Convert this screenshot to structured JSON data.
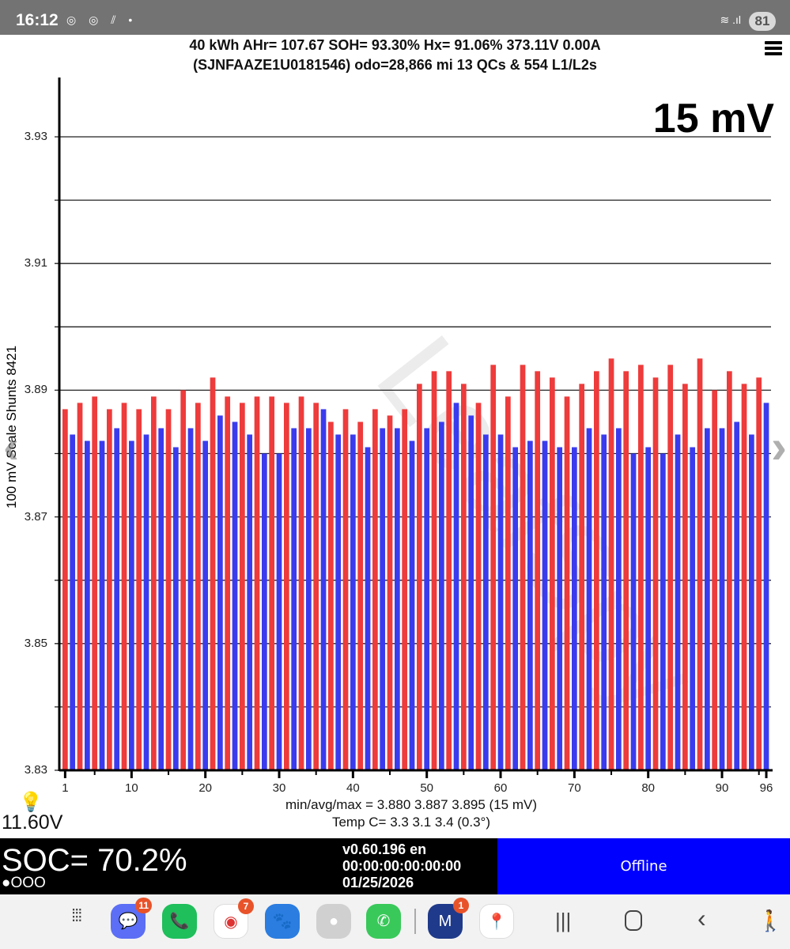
{
  "status_bar": {
    "time": "16:12",
    "notification_icons": [
      "chrome-icon",
      "chrome-icon",
      "data-saver-icon",
      "dot-icon"
    ],
    "wifi_label": "6",
    "battery": "81"
  },
  "header": {
    "line1": "40 kWh  AHr= 107.67  SOH= 93.30%   Hx= 91.06%   373.11V 0.00A",
    "line2": "(SJNFAAZE1U0181546) odo=28,866 mi  13 QCs & 554 L1/L2s",
    "menu_icon": "hamburger-menu-icon"
  },
  "chart": {
    "scale_label": "15 mV",
    "watermark": "LeafSpy",
    "y_axis_title": "100 mV Scale  Shunts 8421",
    "stats_line": "min/avg/max = 3.880 3.887 3.895  (15 mV)",
    "temp_line": "Temp C= 3.3  3.1  3.4  (0.3°)",
    "aux_battery": "11.60V"
  },
  "chart_data": {
    "type": "bar",
    "title": "15 mV",
    "xlabel": "",
    "ylabel": "100 mV Scale  Shunts 8421",
    "ylim": [
      3.83,
      3.93
    ],
    "y_ticks": [
      "3.83",
      "3.85",
      "3.87",
      "3.89",
      "3.91",
      "3.93"
    ],
    "x_ticks": [
      "1",
      "10",
      "20",
      "30",
      "40",
      "50",
      "60",
      "70",
      "80",
      "90",
      "96"
    ],
    "grid": true,
    "colors": {
      "odd_cells": "#ee3b3b",
      "even_cells": "#3b3bee"
    },
    "categories_count": 96,
    "values": [
      3.887,
      3.883,
      3.888,
      3.882,
      3.889,
      3.882,
      3.887,
      3.884,
      3.888,
      3.882,
      3.887,
      3.883,
      3.889,
      3.884,
      3.887,
      3.881,
      3.89,
      3.884,
      3.888,
      3.882,
      3.892,
      3.886,
      3.889,
      3.885,
      3.888,
      3.883,
      3.889,
      3.88,
      3.889,
      3.88,
      3.888,
      3.884,
      3.889,
      3.884,
      3.888,
      3.887,
      3.885,
      3.883,
      3.887,
      3.883,
      3.885,
      3.881,
      3.887,
      3.884,
      3.886,
      3.884,
      3.887,
      3.882,
      3.891,
      3.884,
      3.893,
      3.885,
      3.893,
      3.888,
      3.891,
      3.886,
      3.888,
      3.883,
      3.894,
      3.883,
      3.889,
      3.881,
      3.894,
      3.882,
      3.893,
      3.882,
      3.892,
      3.881,
      3.889,
      3.881,
      3.891,
      3.884,
      3.893,
      3.883,
      3.895,
      3.884,
      3.893,
      3.88,
      3.894,
      3.881,
      3.892,
      3.88,
      3.894,
      3.883,
      3.891,
      3.881,
      3.895,
      3.884,
      3.89,
      3.884,
      3.893,
      3.885,
      3.891,
      3.883,
      3.892,
      3.888
    ]
  },
  "footer": {
    "soc": "SOC= 70.2%",
    "dots": "●OOO",
    "version": "v0.60.196 en",
    "timer": "00:00:00:00:00:00",
    "date": "01/25/2026",
    "status_button": "Offline",
    "status_color": "#0000ff"
  },
  "dock": {
    "apps": [
      {
        "name": "messages",
        "badge": "11",
        "color": "#5b6ef5",
        "glyph": "💬"
      },
      {
        "name": "phone",
        "badge": "",
        "color": "#1fbf5b",
        "glyph": "📞"
      },
      {
        "name": "chrome",
        "badge": "7",
        "color": "#ffffff",
        "glyph": "◉"
      },
      {
        "name": "pet-app",
        "badge": "",
        "color": "#2b7de0",
        "glyph": "🐾"
      },
      {
        "name": "camera",
        "badge": "",
        "color": "#d0d0d0",
        "glyph": "●"
      },
      {
        "name": "whatsapp",
        "badge": "",
        "color": "#39c95a",
        "glyph": "✆"
      },
      {
        "name": "north-midlands",
        "badge": "1",
        "color": "#1f3a8a",
        "glyph": "M"
      },
      {
        "name": "maps-go",
        "badge": "",
        "color": "#ffffff",
        "glyph": "📍"
      }
    ],
    "nav": [
      "recents",
      "home",
      "back",
      "accessibility"
    ]
  }
}
